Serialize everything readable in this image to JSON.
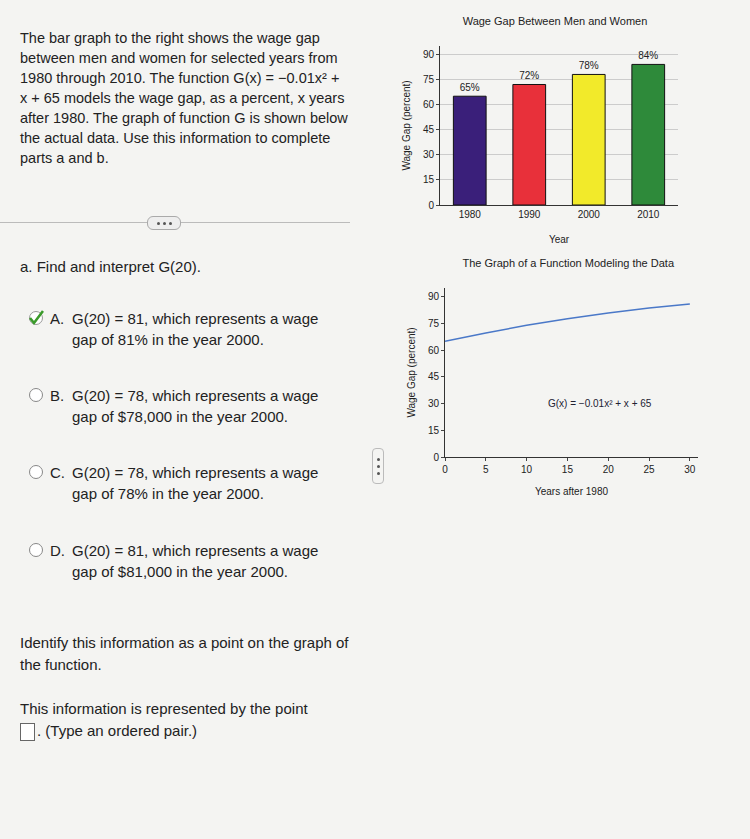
{
  "document": {
    "intro": "The bar graph to the right shows the wage gap between men and women for selected years from 1980 through 2010. The function G(x) = −0.01x² + x + 65 models the wage gap, as a percent, x years after 1980. The graph of function G is shown below the actual data. Use this information to complete parts a and b.",
    "part_a": {
      "prompt": "a. Find and interpret G(20).",
      "options": [
        {
          "label": "A.",
          "text": "G(20) = 81, which represents a wage gap of 81% in the year 2000.",
          "selected": true
        },
        {
          "label": "B.",
          "text": "G(20) = 78, which represents a wage gap of $78,000 in the year 2000.",
          "selected": false
        },
        {
          "label": "C.",
          "text": "G(20) = 78, which represents a wage gap of 78% in the year 2000.",
          "selected": false
        },
        {
          "label": "D.",
          "text": "G(20) = 81, which represents a wage gap of $81,000 in the year 2000.",
          "selected": false
        }
      ]
    },
    "identify_prompt": "Identify this information as a point on the graph of the function.",
    "answer_prefix": "This information is represented by the point",
    "answer_suffix": ". (Type an ordered pair.)"
  },
  "chart_data": [
    {
      "type": "bar",
      "title": "Wage Gap Between Men and Women",
      "x_label": "Year",
      "y_label": "Wage Gap (percent)",
      "categories": [
        "1980",
        "1990",
        "2000",
        "2010"
      ],
      "values": [
        65,
        72,
        78,
        84
      ],
      "value_labels": [
        "65%",
        "72%",
        "78%",
        "84%"
      ],
      "data_labels": true,
      "colors": [
        "#3a1f7a",
        "#e8303a",
        "#f2ea2a",
        "#2e8a3a"
      ],
      "ylim": [
        0,
        95
      ],
      "yticks": [
        0,
        15,
        30,
        45,
        60,
        75,
        90
      ],
      "grid": true
    },
    {
      "type": "line",
      "title": "The Graph of a Function Modeling the Data",
      "x_label": "Years after 1980",
      "y_label": "Wage Gap (percent)",
      "x": [
        0,
        5,
        10,
        15,
        20,
        25,
        30
      ],
      "values": [
        65,
        69.75,
        74,
        77.75,
        81,
        83.75,
        86
      ],
      "color": "#4a78c8",
      "xlim": [
        0,
        31
      ],
      "xticks": [
        0,
        5,
        10,
        15,
        20,
        25,
        30
      ],
      "ylim": [
        0,
        95
      ],
      "yticks": [
        0,
        15,
        30,
        45,
        60,
        75,
        90
      ],
      "grid": false,
      "annotations": [
        {
          "text": "G(x) = −0.01x² + x + 65",
          "x": 19,
          "y": 30
        }
      ]
    }
  ]
}
